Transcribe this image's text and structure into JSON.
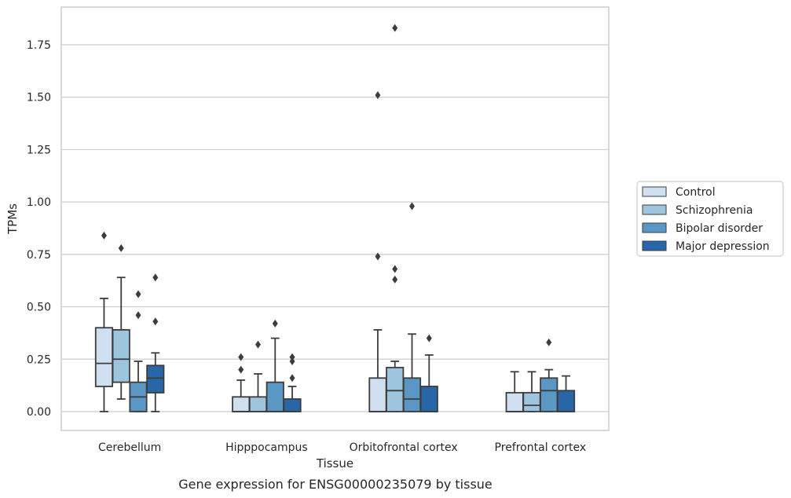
{
  "chart_data": {
    "type": "box",
    "xlabel": "Tissue",
    "ylabel": "TPMs",
    "caption": "Gene expression for ENSG00000235079 by tissue",
    "ylim": [
      -0.09,
      1.93
    ],
    "yticks": [
      "0.00",
      "0.25",
      "0.50",
      "0.75",
      "1.00",
      "1.25",
      "1.50",
      "1.75"
    ],
    "grid": true,
    "legend_position": "right",
    "categories": [
      "Cerebellum",
      "Hipppocampus",
      "Orbitofrontal cortex",
      "Prefrontal cortex"
    ],
    "series": [
      {
        "name": "Control",
        "color": "#d0e0f0",
        "boxes": [
          {
            "min": 0.0,
            "q1": 0.12,
            "median": 0.23,
            "q3": 0.4,
            "max": 0.54,
            "outliers": [
              0.84
            ]
          },
          {
            "min": 0.0,
            "q1": 0.0,
            "median": 0.0,
            "q3": 0.07,
            "max": 0.15,
            "outliers": [
              0.2,
              0.26
            ]
          },
          {
            "min": 0.0,
            "q1": 0.0,
            "median": 0.0,
            "q3": 0.16,
            "max": 0.39,
            "outliers": [
              0.74,
              1.51
            ]
          },
          {
            "min": 0.0,
            "q1": 0.0,
            "median": 0.0,
            "q3": 0.09,
            "max": 0.19,
            "outliers": []
          }
        ]
      },
      {
        "name": "Schizophrenia",
        "color": "#9ec5de",
        "boxes": [
          {
            "min": 0.06,
            "q1": 0.14,
            "median": 0.25,
            "q3": 0.39,
            "max": 0.64,
            "outliers": [
              0.78
            ]
          },
          {
            "min": 0.0,
            "q1": 0.0,
            "median": 0.0,
            "q3": 0.07,
            "max": 0.18,
            "outliers": [
              0.32
            ]
          },
          {
            "min": 0.0,
            "q1": 0.0,
            "median": 0.1,
            "q3": 0.21,
            "max": 0.24,
            "outliers": [
              0.63,
              0.68,
              1.83
            ]
          },
          {
            "min": 0.0,
            "q1": 0.0,
            "median": 0.03,
            "q3": 0.09,
            "max": 0.19,
            "outliers": []
          }
        ]
      },
      {
        "name": "Bipolar disorder",
        "color": "#5a97c4",
        "boxes": [
          {
            "min": 0.0,
            "q1": 0.0,
            "median": 0.07,
            "q3": 0.14,
            "max": 0.24,
            "outliers": [
              0.46,
              0.56
            ]
          },
          {
            "min": 0.0,
            "q1": 0.0,
            "median": 0.0,
            "q3": 0.14,
            "max": 0.35,
            "outliers": [
              0.42
            ]
          },
          {
            "min": 0.0,
            "q1": 0.0,
            "median": 0.06,
            "q3": 0.16,
            "max": 0.37,
            "outliers": [
              0.98
            ]
          },
          {
            "min": 0.0,
            "q1": 0.0,
            "median": 0.1,
            "q3": 0.16,
            "max": 0.2,
            "outliers": [
              0.33
            ]
          }
        ]
      },
      {
        "name": "Major depression",
        "color": "#2966a8",
        "boxes": [
          {
            "min": 0.0,
            "q1": 0.09,
            "median": 0.16,
            "q3": 0.22,
            "max": 0.28,
            "outliers": [
              0.43,
              0.64
            ]
          },
          {
            "min": 0.0,
            "q1": 0.0,
            "median": 0.0,
            "q3": 0.06,
            "max": 0.12,
            "outliers": [
              0.16,
              0.24,
              0.26
            ]
          },
          {
            "min": 0.0,
            "q1": 0.0,
            "median": 0.0,
            "q3": 0.12,
            "max": 0.27,
            "outliers": [
              0.35
            ]
          },
          {
            "min": 0.0,
            "q1": 0.0,
            "median": 0.0,
            "q3": 0.1,
            "max": 0.17,
            "outliers": []
          }
        ]
      }
    ]
  }
}
